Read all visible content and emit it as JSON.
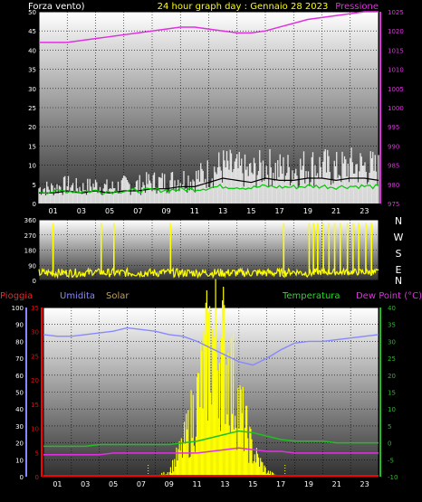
{
  "header": {
    "left_label": "Forza vento)",
    "title": "24 hour graph day : Gennaio 28 2023",
    "right_label": "Pressione"
  },
  "compass": {
    "labels": [
      "N",
      "W",
      "S",
      "E",
      "N"
    ]
  },
  "bottom_header": {
    "pioggia": "Pioggia",
    "umidita": "Umidita",
    "solar": "Solar",
    "temperatura": "Temperatura",
    "dew_point": "Dew Point (°C)"
  },
  "x_ticks": [
    "01",
    "03",
    "05",
    "07",
    "09",
    "11",
    "13",
    "15",
    "17",
    "19",
    "21",
    "23"
  ],
  "colors": {
    "wind": "#ffffff",
    "gust": "#00c800",
    "pressure": "#e030e0",
    "direction": "#ffff00",
    "humidity": "#8888ff",
    "temperature": "#20c020",
    "dew_point": "#e030e0",
    "solar": "#ffff00",
    "rain": "#ff0000",
    "axis_left": "#ffffff",
    "axis_pressure": "#e030e0"
  },
  "chart_data": [
    {
      "type": "line",
      "panel": "wind_pressure",
      "x": [
        0,
        1,
        2,
        3,
        4,
        5,
        6,
        7,
        8,
        9,
        10,
        11,
        12,
        13,
        14,
        15,
        16,
        17,
        18,
        19,
        20,
        21,
        22,
        23,
        24
      ],
      "series": [
        {
          "name": "Forza vento",
          "axis": "left",
          "values": [
            5,
            5,
            6,
            5,
            6,
            5,
            6,
            6,
            7,
            7,
            8,
            8,
            10,
            12,
            11,
            10,
            12,
            11,
            11,
            12,
            12,
            11,
            12,
            12,
            11
          ]
        },
        {
          "name": "Pressione",
          "axis": "right",
          "values": [
            1017,
            1017,
            1017,
            1017.5,
            1018,
            1018.5,
            1019,
            1019.5,
            1020,
            1020.5,
            1021,
            1021,
            1020.5,
            1020,
            1019.5,
            1019.5,
            1020,
            1021,
            1022,
            1023,
            1023.5,
            1024,
            1024.5,
            1025,
            1025
          ]
        }
      ],
      "ylim_left": [
        0,
        50
      ],
      "yticks_left": [
        0,
        5,
        10,
        15,
        20,
        25,
        30,
        35,
        40,
        45,
        50
      ],
      "ylim_right": [
        975,
        1025
      ],
      "yticks_right": [
        975,
        980,
        985,
        990,
        995,
        1000,
        1005,
        1010,
        1015,
        1020,
        1025
      ],
      "grid": true
    },
    {
      "type": "line",
      "panel": "wind_direction",
      "x": [
        0,
        1,
        2,
        3,
        4,
        5,
        6,
        7,
        8,
        9,
        10,
        11,
        12,
        13,
        14,
        15,
        16,
        17,
        18,
        19,
        20,
        21,
        22,
        23,
        24
      ],
      "values": [
        45,
        60,
        30,
        50,
        300,
        40,
        55,
        35,
        60,
        320,
        45,
        50,
        40,
        55,
        45,
        50,
        60,
        45,
        330,
        50,
        340,
        350,
        300,
        330,
        60
      ],
      "ylim": [
        0,
        360
      ],
      "yticks": [
        0,
        90,
        180,
        270,
        360
      ],
      "grid": true
    },
    {
      "type": "line",
      "panel": "rain_humidity_solar_temperature",
      "x": [
        0,
        1,
        2,
        3,
        4,
        5,
        6,
        7,
        8,
        9,
        10,
        11,
        12,
        13,
        14,
        15,
        16,
        17,
        18,
        19,
        20,
        21,
        22,
        23,
        24
      ],
      "series": [
        {
          "name": "Umidita",
          "axis": "left_rain_humidity",
          "values": [
            84,
            83,
            83,
            84,
            85,
            86,
            88,
            87,
            86,
            84,
            83,
            80,
            76,
            72,
            68,
            66,
            70,
            75,
            79,
            80,
            80,
            81,
            82,
            83,
            84
          ]
        },
        {
          "name": "Temperatura",
          "axis": "right",
          "values": [
            -1,
            -1,
            -1,
            -1,
            -0.5,
            -0.5,
            -0.5,
            -0.5,
            -0.5,
            -0.5,
            0,
            0.5,
            1.5,
            2.5,
            3.5,
            3,
            2,
            1,
            0.5,
            0.5,
            0.5,
            0,
            0,
            0,
            0
          ]
        },
        {
          "name": "Dew Point (°C)",
          "axis": "right",
          "values": [
            -3.5,
            -3.5,
            -3.5,
            -3.5,
            -3.5,
            -3,
            -3,
            -3,
            -3,
            -3,
            -3,
            -3,
            -2.5,
            -2,
            -1.5,
            -2,
            -2.5,
            -2.5,
            -3,
            -3,
            -3,
            -3,
            -3,
            -3,
            -3
          ]
        },
        {
          "name": "Solar",
          "axis": "solar",
          "values": [
            0,
            0,
            0,
            0,
            0,
            0,
            0,
            0,
            0,
            2,
            12,
            30,
            55,
            50,
            28,
            10,
            2,
            0,
            0,
            0,
            0,
            0,
            0,
            0,
            0
          ]
        },
        {
          "name": "Pioggia",
          "axis": "left_rain",
          "values": [
            0,
            0,
            0,
            0,
            0,
            0,
            0,
            0,
            0,
            0,
            0,
            0,
            0,
            0,
            0,
            0,
            0,
            0,
            0,
            0,
            0,
            0,
            0,
            0,
            0
          ]
        }
      ],
      "ylim_left_humidity": [
        0,
        100
      ],
      "yticks_left_humidity": [
        0,
        10,
        20,
        30,
        40,
        50,
        60,
        70,
        80,
        90,
        100
      ],
      "ylim_left_rain": [
        0,
        35
      ],
      "yticks_left_rain": [
        0,
        5,
        10,
        15,
        20,
        25,
        30,
        35
      ],
      "ylim_right": [
        -10,
        40
      ],
      "yticks_right": [
        -10,
        -5,
        0,
        5,
        10,
        15,
        20,
        25,
        30,
        35,
        40
      ],
      "grid": true
    }
  ]
}
